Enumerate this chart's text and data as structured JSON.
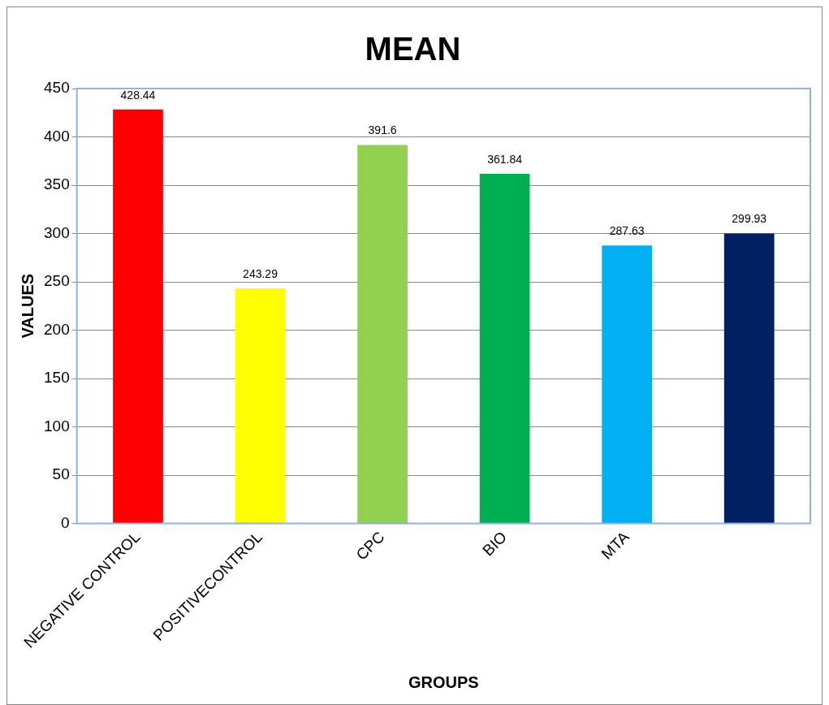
{
  "chart_data": {
    "type": "bar",
    "title": "MEAN",
    "xlabel": "GROUPS",
    "ylabel": "VALUES",
    "categories": [
      "NEGATIVE CONTROL",
      "POSITIVECONTROL",
      "CPC",
      "BIO",
      "MTA",
      null
    ],
    "values": [
      428.44,
      243.29,
      391.6,
      361.84,
      287.63,
      299.93
    ],
    "colors": [
      "#ff0000",
      "#ffff00",
      "#92d050",
      "#00b050",
      "#00b0f0",
      "#002060"
    ],
    "ylim": [
      0,
      450
    ],
    "yticks": [
      0,
      50,
      100,
      150,
      200,
      250,
      300,
      350,
      400,
      450
    ],
    "grid": "y",
    "data_labels": true,
    "legend": false
  }
}
